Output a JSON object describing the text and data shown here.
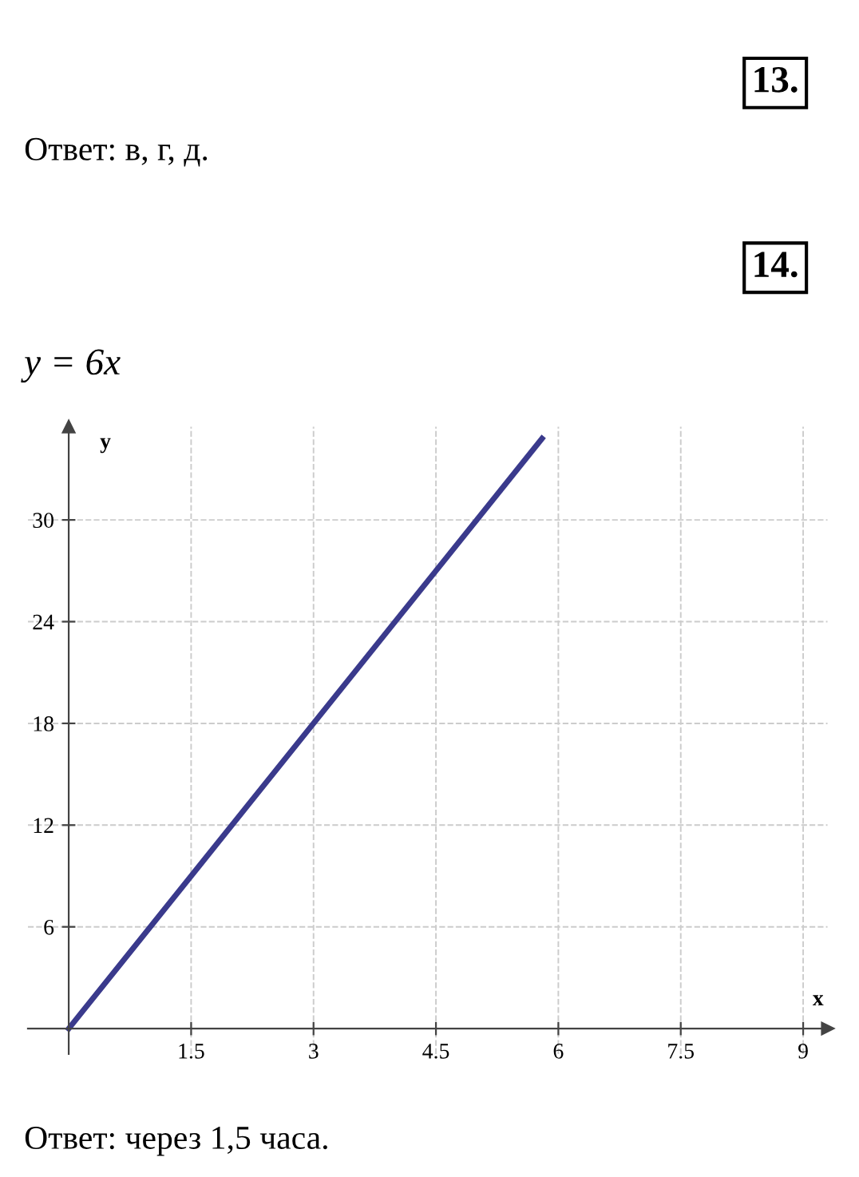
{
  "chart_data": {
    "type": "line",
    "title": "y = 6x",
    "xlabel": "x",
    "ylabel": "y",
    "x": [
      0,
      5.8
    ],
    "series": [
      {
        "color": "#3a3a8c",
        "values": [
          0,
          34.8
        ]
      }
    ],
    "xlim": [
      -0.5,
      9.3
    ],
    "ylim": [
      -1.5,
      35.5
    ],
    "xticks": [
      {
        "value": 1.5,
        "label": "1.5"
      },
      3,
      {
        "value": 4.5,
        "label": "4.5"
      },
      6,
      {
        "value": 7.5,
        "label": "7.5"
      },
      9
    ],
    "yticks": [
      6,
      12,
      18,
      24,
      30
    ],
    "grid": true,
    "marker": "none",
    "line_style": "solid",
    "annotations": [
      "13.",
      "Ответ: в, г, д.",
      "14.",
      "Ответ: через 1,5 часа."
    ]
  }
}
